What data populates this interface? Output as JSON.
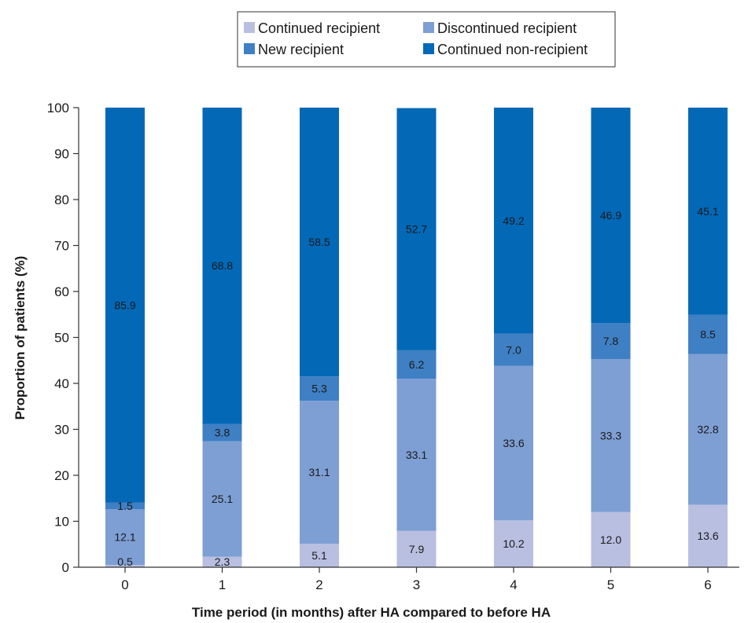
{
  "chart_data": {
    "type": "bar",
    "stacked": true,
    "title": "",
    "xlabel": "Time period (in months) after HA compared to before HA",
    "ylabel": "Proportion of patients (%)",
    "ylim": [
      0,
      100
    ],
    "yticks": [
      "0",
      "10",
      "20",
      "30",
      "40",
      "50",
      "60",
      "70",
      "80",
      "90",
      "100"
    ],
    "categories": [
      "0",
      "1",
      "2",
      "3",
      "4",
      "5",
      "6"
    ],
    "legend_position": "top-right",
    "grid": false,
    "series": [
      {
        "name": "Continued recipient",
        "color": "#b8bfe0",
        "values": [
          0.5,
          2.3,
          5.1,
          7.9,
          10.2,
          12.0,
          13.6
        ],
        "labels": [
          "0.5",
          "2.3",
          "5.1",
          "7.9",
          "10.2",
          "12.0",
          "13.6"
        ]
      },
      {
        "name": "Discontinued recipient",
        "color": "#7e9fd4",
        "values": [
          12.1,
          25.1,
          31.1,
          33.1,
          33.6,
          33.3,
          32.8
        ],
        "labels": [
          "12.1",
          "25.1",
          "31.1",
          "33.1",
          "33.6",
          "33.3",
          "32.8"
        ]
      },
      {
        "name": "New recipient",
        "color": "#3f7fc4",
        "values": [
          1.5,
          3.8,
          5.3,
          6.2,
          7.0,
          7.8,
          8.5
        ],
        "labels": [
          "1.5",
          "3.8",
          "5.3",
          "6.2",
          "7.0",
          "7.8",
          "8.5"
        ]
      },
      {
        "name": "Continued non-recipient",
        "color": "#0368b6",
        "values": [
          85.9,
          68.8,
          58.5,
          52.7,
          49.2,
          46.9,
          45.1
        ],
        "labels": [
          "85.9",
          "68.8",
          "58.5",
          "52.7",
          "49.2",
          "46.9",
          "45.1"
        ]
      }
    ]
  }
}
